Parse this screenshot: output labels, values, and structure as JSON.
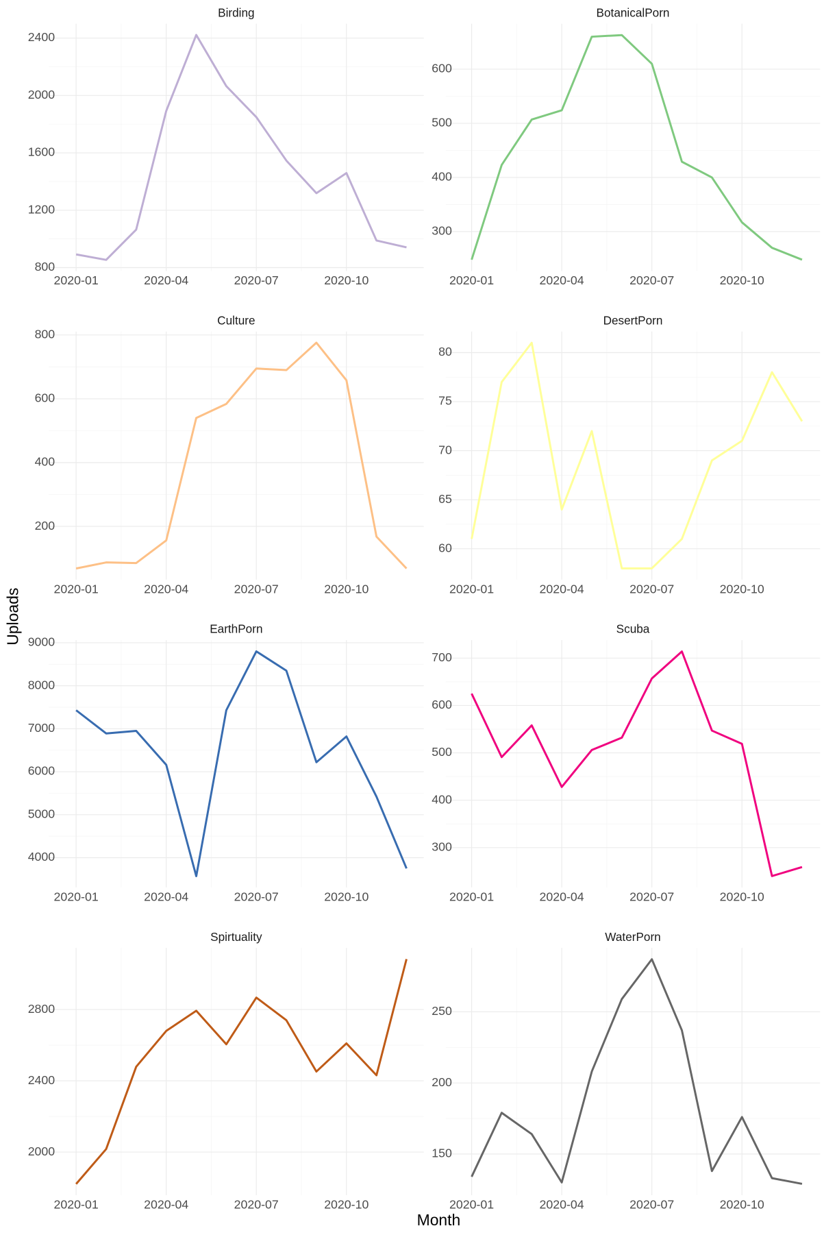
{
  "x_label": "Month",
  "y_label": "Uploads",
  "chart_data": [
    {
      "type": "line",
      "title": "Birding",
      "x": [
        "2020-01",
        "2020-02",
        "2020-03",
        "2020-04",
        "2020-05",
        "2020-06",
        "2020-07",
        "2020-08",
        "2020-09",
        "2020-10",
        "2020-11",
        "2020-12"
      ],
      "series": [
        {
          "name": "Birding",
          "color": "#beaed4",
          "values": [
            892,
            854,
            1065,
            1892,
            2422,
            2065,
            1849,
            1546,
            1319,
            1459,
            989,
            941
          ]
        }
      ],
      "xlim": [
        "2020-01",
        "2020-12"
      ],
      "xticks": [
        "2020-01",
        "2020-04",
        "2020-07",
        "2020-10"
      ],
      "ylim": [
        776,
        2500
      ],
      "yticks": [
        800,
        1200,
        1600,
        2000,
        2400
      ],
      "grid": true
    },
    {
      "type": "line",
      "title": "BotanicalPorn",
      "x": [
        "2020-01",
        "2020-02",
        "2020-03",
        "2020-04",
        "2020-05",
        "2020-06",
        "2020-07",
        "2020-08",
        "2020-09",
        "2020-10",
        "2020-11",
        "2020-12"
      ],
      "series": [
        {
          "name": "BotanicalPorn",
          "color": "#7fc97f",
          "values": [
            248,
            423,
            507,
            524,
            660,
            663,
            610,
            429,
            400,
            317,
            270,
            248
          ]
        }
      ],
      "xlim": [
        "2020-01",
        "2020-12"
      ],
      "xticks": [
        "2020-01",
        "2020-04",
        "2020-07",
        "2020-10"
      ],
      "ylim": [
        227,
        684
      ],
      "yticks": [
        300,
        400,
        500,
        600
      ],
      "grid": true
    },
    {
      "type": "line",
      "title": "Culture",
      "x": [
        "2020-01",
        "2020-02",
        "2020-03",
        "2020-04",
        "2020-05",
        "2020-06",
        "2020-07",
        "2020-08",
        "2020-09",
        "2020-10",
        "2020-11",
        "2020-12"
      ],
      "series": [
        {
          "name": "Culture",
          "color": "#fdc086",
          "values": [
            68,
            87,
            85,
            156,
            540,
            584,
            695,
            690,
            776,
            658,
            168,
            68
          ]
        }
      ],
      "xlim": [
        "2020-01",
        "2020-12"
      ],
      "xticks": [
        "2020-01",
        "2020-04",
        "2020-07",
        "2020-10"
      ],
      "ylim": [
        33,
        811
      ],
      "yticks": [
        200,
        400,
        600,
        800
      ],
      "grid": true
    },
    {
      "type": "line",
      "title": "DesertPorn",
      "x": [
        "2020-01",
        "2020-02",
        "2020-03",
        "2020-04",
        "2020-05",
        "2020-06",
        "2020-07",
        "2020-08",
        "2020-09",
        "2020-10",
        "2020-11",
        "2020-12"
      ],
      "series": [
        {
          "name": "DesertPorn",
          "color": "#ffff99",
          "values": [
            61,
            77,
            81,
            64,
            72,
            58,
            58,
            61,
            69,
            71,
            78,
            73
          ]
        }
      ],
      "xlim": [
        "2020-01",
        "2020-12"
      ],
      "xticks": [
        "2020-01",
        "2020-04",
        "2020-07",
        "2020-10"
      ],
      "ylim": [
        56.85,
        82.15
      ],
      "yticks": [
        60,
        65,
        70,
        75,
        80
      ],
      "grid": true
    },
    {
      "type": "line",
      "title": "EarthPorn",
      "x": [
        "2020-01",
        "2020-02",
        "2020-03",
        "2020-04",
        "2020-05",
        "2020-06",
        "2020-07",
        "2020-08",
        "2020-09",
        "2020-10",
        "2020-11",
        "2020-12"
      ],
      "series": [
        {
          "name": "EarthPorn",
          "color": "#386cb0",
          "values": [
            7430,
            6890,
            6950,
            6160,
            3570,
            7430,
            8800,
            8350,
            6220,
            6820,
            5420,
            3750
          ]
        }
      ],
      "xlim": [
        "2020-01",
        "2020-12"
      ],
      "xticks": [
        "2020-01",
        "2020-04",
        "2020-07",
        "2020-10"
      ],
      "ylim": [
        3308,
        9062
      ],
      "yticks": [
        4000,
        5000,
        6000,
        7000,
        8000,
        9000
      ],
      "grid": true
    },
    {
      "type": "line",
      "title": "Scuba",
      "x": [
        "2020-01",
        "2020-02",
        "2020-03",
        "2020-04",
        "2020-05",
        "2020-06",
        "2020-07",
        "2020-08",
        "2020-09",
        "2020-10",
        "2020-11",
        "2020-12"
      ],
      "series": [
        {
          "name": "Scuba",
          "color": "#f0027f",
          "values": [
            625,
            491,
            558,
            428,
            506,
            532,
            657,
            714,
            547,
            519,
            240,
            259
          ]
        }
      ],
      "xlim": [
        "2020-01",
        "2020-12"
      ],
      "xticks": [
        "2020-01",
        "2020-04",
        "2020-07",
        "2020-10"
      ],
      "ylim": [
        216,
        738
      ],
      "yticks": [
        300,
        400,
        500,
        600,
        700
      ],
      "grid": true
    },
    {
      "type": "line",
      "title": "Spirtuality",
      "x": [
        "2020-01",
        "2020-02",
        "2020-03",
        "2020-04",
        "2020-05",
        "2020-06",
        "2020-07",
        "2020-08",
        "2020-09",
        "2020-10",
        "2020-11",
        "2020-12"
      ],
      "series": [
        {
          "name": "Spirtuality",
          "color": "#bf5b17",
          "values": [
            1821,
            2017,
            2479,
            2680,
            2793,
            2605,
            2867,
            2740,
            2452,
            2610,
            2431,
            3083
          ]
        }
      ],
      "xlim": [
        "2020-01",
        "2020-12"
      ],
      "xticks": [
        "2020-01",
        "2020-04",
        "2020-07",
        "2020-10"
      ],
      "ylim": [
        1758,
        3146
      ],
      "yticks": [
        2000,
        2400,
        2800
      ],
      "grid": true
    },
    {
      "type": "line",
      "title": "WaterPorn",
      "x": [
        "2020-01",
        "2020-02",
        "2020-03",
        "2020-04",
        "2020-05",
        "2020-06",
        "2020-07",
        "2020-08",
        "2020-09",
        "2020-10",
        "2020-11",
        "2020-12"
      ],
      "series": [
        {
          "name": "WaterPorn",
          "color": "#666666",
          "values": [
            134,
            179,
            164,
            130,
            208,
            259,
            287,
            237,
            138,
            176,
            133,
            129
          ]
        }
      ],
      "xlim": [
        "2020-01",
        "2020-12"
      ],
      "xticks": [
        "2020-01",
        "2020-04",
        "2020-07",
        "2020-10"
      ],
      "ylim": [
        121,
        295
      ],
      "yticks": [
        150,
        200,
        250
      ],
      "grid": true
    }
  ]
}
